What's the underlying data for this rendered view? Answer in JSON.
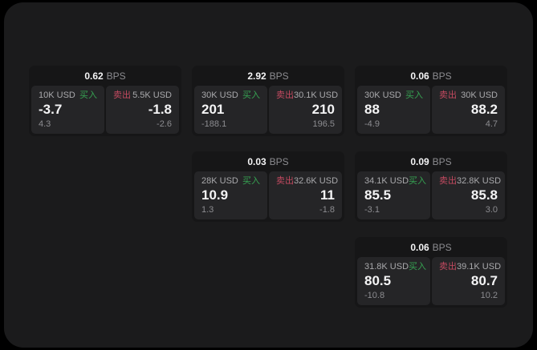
{
  "labels": {
    "bps": "BPS",
    "buy": "买入",
    "sell": "卖出"
  },
  "colors": {
    "background": "#000000",
    "panel": "#1b1b1c",
    "card": "#161617",
    "cell": "#252527",
    "buy_green": "#36a352",
    "sell_red": "#c44a60",
    "value_white": "#f4f4f5",
    "muted_gray": "#8c8c90"
  },
  "cards": [
    {
      "row": 1,
      "col": 1,
      "bps": "0.62",
      "buy": {
        "amount": "10K USD",
        "price": "-3.7",
        "delta": "4.3"
      },
      "sell": {
        "amount": "5.5K USD",
        "price": "-1.8",
        "delta": "-2.6"
      }
    },
    {
      "row": 1,
      "col": 2,
      "bps": "2.92",
      "buy": {
        "amount": "30K USD",
        "price": "201",
        "delta": "-188.1"
      },
      "sell": {
        "amount": "30.1K USD",
        "price": "210",
        "delta": "196.5"
      }
    },
    {
      "row": 1,
      "col": 3,
      "bps": "0.06",
      "buy": {
        "amount": "30K USD",
        "price": "88",
        "delta": "-4.9"
      },
      "sell": {
        "amount": "30K USD",
        "price": "88.2",
        "delta": "4.7"
      }
    },
    {
      "row": 2,
      "col": 2,
      "bps": "0.03",
      "buy": {
        "amount": "28K USD",
        "price": "10.9",
        "delta": "1.3"
      },
      "sell": {
        "amount": "32.6K USD",
        "price": "11",
        "delta": "-1.8"
      }
    },
    {
      "row": 2,
      "col": 3,
      "bps": "0.09",
      "buy": {
        "amount": "34.1K USD",
        "price": "85.5",
        "delta": "-3.1"
      },
      "sell": {
        "amount": "32.8K USD",
        "price": "85.8",
        "delta": "3.0"
      }
    },
    {
      "row": 3,
      "col": 3,
      "bps": "0.06",
      "buy": {
        "amount": "31.8K USD",
        "price": "80.5",
        "delta": "-10.8"
      },
      "sell": {
        "amount": "39.1K USD",
        "price": "80.7",
        "delta": "10.2"
      }
    }
  ]
}
